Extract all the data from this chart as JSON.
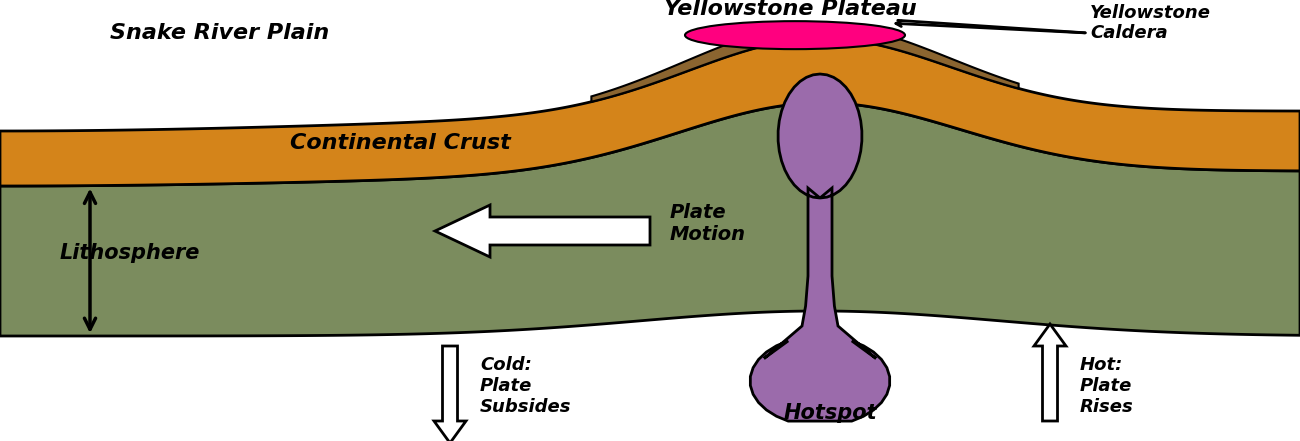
{
  "background_color": "#ffffff",
  "fig_width": 13.0,
  "fig_height": 4.41,
  "dpi": 100,
  "colors": {
    "orange_crust": "#D4841A",
    "olive_lithosphere": "#7B8C5E",
    "magenta_caldera": "#FF007F",
    "purple_plume": "#9B6BAB",
    "brown_surface": "#8B6530",
    "white": "#FFFFFF",
    "black": "#000000"
  },
  "labels": {
    "snake_river": "Snake River Plain",
    "yellowstone_plateau": "Yellowstone Plateau",
    "yellowstone_caldera": "Yellowstone\nCaldera",
    "continental_crust": "Continental Crust",
    "lithosphere": "Lithosphere",
    "plate_motion": "Plate\nMotion",
    "cold_plate": "Cold:\nPlate\nSubsides",
    "hot_plate": "Hot:\nPlate\nRises",
    "hotspot": "Hotspot"
  }
}
